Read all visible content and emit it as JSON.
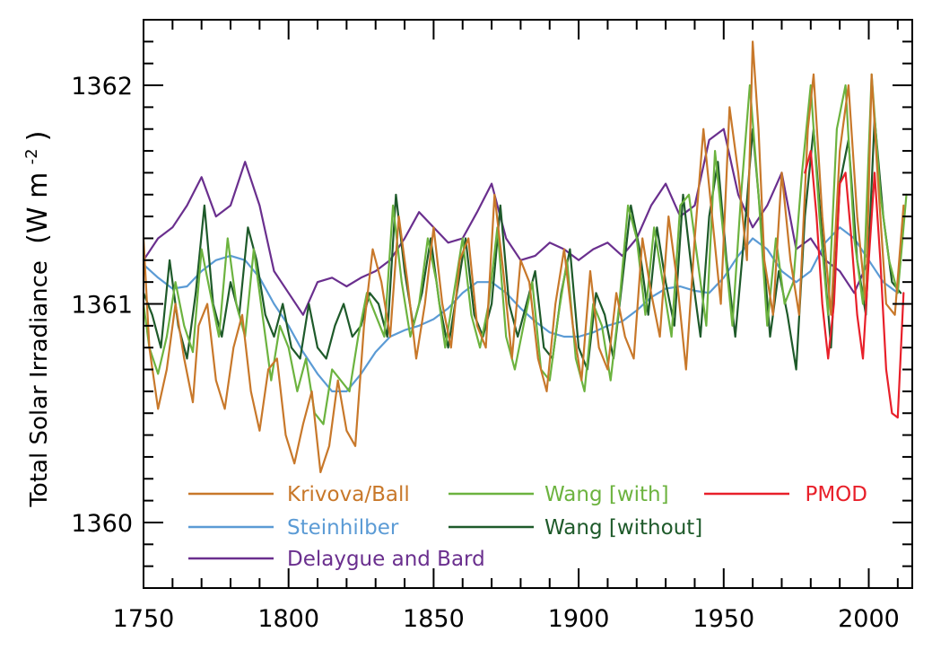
{
  "chart_data": {
    "type": "line",
    "title": "",
    "xlabel": "",
    "ylabel": "Total Solar Irradiance",
    "ylabel_units": "(W m",
    "ylabel_units_exp": "-2",
    "ylabel_units_close": ")",
    "xlim": [
      1750,
      2015
    ],
    "ylim": [
      1359.7,
      1362.3
    ],
    "xticks": [
      1750,
      1800,
      1850,
      1900,
      1950,
      2000
    ],
    "yticks": [
      1360,
      1361,
      1362
    ],
    "xtick_labels": [
      "1750",
      "1800",
      "1850",
      "1900",
      "1950",
      "2000"
    ],
    "ytick_labels": [
      "1360",
      "1361",
      "1362"
    ],
    "grid": false,
    "legend_position": "bottom-left",
    "series": [
      {
        "name": "Krivova/Ball",
        "color": "#c8782a",
        "x": [
          1750,
          1752,
          1755,
          1758,
          1761,
          1764,
          1767,
          1769,
          1772,
          1775,
          1778,
          1781,
          1784,
          1787,
          1790,
          1793,
          1796,
          1799,
          1802,
          1805,
          1808,
          1811,
          1814,
          1817,
          1820,
          1823,
          1826,
          1829,
          1832,
          1835,
          1838,
          1841,
          1844,
          1847,
          1850,
          1853,
          1856,
          1859,
          1862,
          1865,
          1868,
          1871,
          1874,
          1877,
          1880,
          1883,
          1886,
          1889,
          1892,
          1895,
          1898,
          1901,
          1904,
          1907,
          1910,
          1913,
          1916,
          1919,
          1922,
          1925,
          1928,
          1931,
          1934,
          1937,
          1940,
          1943,
          1946,
          1949,
          1952,
          1955,
          1958,
          1960,
          1962,
          1964,
          1967,
          1970,
          1973,
          1976,
          1979,
          1981,
          1984,
          1987,
          1990,
          1993,
          1996,
          1999,
          2001,
          2003,
          2006,
          2009,
          2012
        ],
        "y": [
          1361.3,
          1360.8,
          1360.52,
          1360.7,
          1361.0,
          1360.75,
          1360.55,
          1360.9,
          1361.0,
          1360.65,
          1360.52,
          1360.8,
          1360.95,
          1360.6,
          1360.42,
          1360.7,
          1360.75,
          1360.4,
          1360.27,
          1360.45,
          1360.6,
          1360.23,
          1360.35,
          1360.65,
          1360.42,
          1360.35,
          1360.9,
          1361.25,
          1361.1,
          1360.85,
          1361.4,
          1361.1,
          1360.75,
          1361.0,
          1361.35,
          1361.0,
          1360.8,
          1361.2,
          1361.3,
          1360.9,
          1360.8,
          1361.5,
          1361.15,
          1360.75,
          1361.2,
          1361.1,
          1360.75,
          1360.6,
          1361.0,
          1361.25,
          1360.9,
          1360.65,
          1361.15,
          1360.8,
          1360.7,
          1361.05,
          1360.85,
          1360.75,
          1361.3,
          1361.05,
          1360.85,
          1361.4,
          1361.1,
          1360.7,
          1361.3,
          1361.8,
          1361.4,
          1361.0,
          1361.9,
          1361.6,
          1361.2,
          1362.2,
          1361.8,
          1361.2,
          1360.95,
          1361.6,
          1361.2,
          1360.95,
          1361.8,
          1362.05,
          1361.4,
          1360.95,
          1361.7,
          1362.0,
          1361.4,
          1361.0,
          1362.05,
          1361.6,
          1361.0,
          1360.95,
          1361.45
        ]
      },
      {
        "name": "Wang [with]",
        "color": "#6cb33f",
        "x": [
          1750,
          1752,
          1755,
          1758,
          1761,
          1764,
          1767,
          1770,
          1773,
          1776,
          1779,
          1782,
          1785,
          1788,
          1791,
          1794,
          1797,
          1800,
          1803,
          1806,
          1809,
          1812,
          1815,
          1818,
          1821,
          1824,
          1827,
          1830,
          1833,
          1836,
          1839,
          1842,
          1845,
          1848,
          1851,
          1854,
          1857,
          1860,
          1863,
          1866,
          1869,
          1872,
          1875,
          1878,
          1881,
          1884,
          1887,
          1890,
          1893,
          1896,
          1899,
          1902,
          1905,
          1908,
          1911,
          1914,
          1917,
          1920,
          1923,
          1926,
          1929,
          1932,
          1935,
          1938,
          1941,
          1944,
          1947,
          1950,
          1953,
          1956,
          1959,
          1962,
          1965,
          1968,
          1971,
          1974,
          1977,
          1980,
          1983,
          1986,
          1989,
          1992,
          1995,
          1998,
          2001,
          2004,
          2007,
          2010,
          2013
        ],
        "y": [
          1361.0,
          1360.8,
          1360.68,
          1360.85,
          1361.1,
          1360.9,
          1360.78,
          1361.25,
          1361.05,
          1360.85,
          1361.3,
          1361.0,
          1360.85,
          1361.25,
          1360.95,
          1360.65,
          1360.9,
          1360.8,
          1360.6,
          1360.75,
          1360.5,
          1360.45,
          1360.7,
          1360.65,
          1360.6,
          1360.85,
          1361.05,
          1360.95,
          1360.85,
          1361.45,
          1361.1,
          1360.85,
          1361.0,
          1361.3,
          1361.1,
          1360.8,
          1361.05,
          1361.3,
          1360.95,
          1360.8,
          1361.0,
          1361.35,
          1360.85,
          1360.7,
          1360.9,
          1361.1,
          1360.7,
          1360.65,
          1360.95,
          1361.2,
          1360.75,
          1360.6,
          1361.0,
          1360.9,
          1360.65,
          1361.0,
          1361.45,
          1361.3,
          1360.95,
          1361.35,
          1361.1,
          1360.85,
          1361.45,
          1361.5,
          1361.2,
          1360.9,
          1361.7,
          1361.3,
          1360.9,
          1361.5,
          1362.0,
          1361.5,
          1360.9,
          1361.3,
          1361.0,
          1361.1,
          1361.6,
          1362.0,
          1361.4,
          1360.95,
          1361.8,
          1362.0,
          1361.3,
          1361.0,
          1362.05,
          1361.5,
          1361.2,
          1361.05,
          1361.5
        ]
      },
      {
        "name": "PMOD",
        "color": "#e8202a",
        "x": [
          1978,
          1980,
          1982,
          1984,
          1986,
          1988,
          1990,
          1992,
          1994,
          1996,
          1998,
          2000,
          2002,
          2004,
          2006,
          2008,
          2010,
          2012
        ],
        "y": [
          1361.6,
          1361.7,
          1361.4,
          1361.0,
          1360.75,
          1361.0,
          1361.55,
          1361.6,
          1361.3,
          1360.95,
          1360.75,
          1361.2,
          1361.6,
          1361.2,
          1360.7,
          1360.5,
          1360.48,
          1361.05
        ]
      },
      {
        "name": "Steinhilber",
        "color": "#5b9bd5",
        "x": [
          1750,
          1755,
          1760,
          1765,
          1770,
          1775,
          1780,
          1785,
          1790,
          1795,
          1800,
          1805,
          1810,
          1815,
          1820,
          1825,
          1830,
          1835,
          1840,
          1845,
          1850,
          1855,
          1860,
          1865,
          1870,
          1875,
          1880,
          1885,
          1890,
          1895,
          1900,
          1905,
          1910,
          1915,
          1920,
          1925,
          1930,
          1935,
          1940,
          1945,
          1950,
          1955,
          1960,
          1965,
          1970,
          1975,
          1980,
          1985,
          1990,
          1995,
          2000,
          2005,
          2010
        ],
        "y": [
          1361.18,
          1361.12,
          1361.07,
          1361.08,
          1361.15,
          1361.2,
          1361.22,
          1361.2,
          1361.12,
          1361.0,
          1360.9,
          1360.78,
          1360.68,
          1360.6,
          1360.6,
          1360.68,
          1360.78,
          1360.85,
          1360.88,
          1360.9,
          1360.93,
          1360.98,
          1361.05,
          1361.1,
          1361.1,
          1361.05,
          1360.98,
          1360.92,
          1360.87,
          1360.85,
          1360.85,
          1360.87,
          1360.9,
          1360.92,
          1360.97,
          1361.03,
          1361.07,
          1361.08,
          1361.06,
          1361.05,
          1361.12,
          1361.22,
          1361.3,
          1361.25,
          1361.15,
          1361.1,
          1361.15,
          1361.28,
          1361.35,
          1361.3,
          1361.2,
          1361.1,
          1361.05
        ]
      },
      {
        "name": "Wang [without]",
        "color": "#1e5a2a",
        "x": [
          1750,
          1753,
          1756,
          1759,
          1762,
          1765,
          1768,
          1771,
          1774,
          1777,
          1780,
          1783,
          1786,
          1789,
          1792,
          1795,
          1798,
          1801,
          1804,
          1807,
          1810,
          1813,
          1816,
          1819,
          1822,
          1825,
          1828,
          1831,
          1834,
          1837,
          1840,
          1843,
          1846,
          1849,
          1852,
          1855,
          1858,
          1861,
          1864,
          1867,
          1870,
          1873,
          1876,
          1879,
          1882,
          1885,
          1888,
          1891,
          1894,
          1897,
          1900,
          1903,
          1906,
          1909,
          1912,
          1915,
          1918,
          1921,
          1924,
          1927,
          1930,
          1933,
          1936,
          1939,
          1942,
          1945,
          1948,
          1951,
          1954,
          1957,
          1960,
          1963,
          1966,
          1969,
          1972,
          1975,
          1978,
          1981,
          1984,
          1987,
          1990,
          1993,
          1996,
          1999,
          2002,
          2005,
          2008,
          2011
        ],
        "y": [
          1361.05,
          1360.95,
          1360.8,
          1361.2,
          1360.9,
          1360.75,
          1361.05,
          1361.45,
          1361.0,
          1360.85,
          1361.1,
          1360.95,
          1361.35,
          1361.2,
          1360.95,
          1360.85,
          1361.0,
          1360.8,
          1360.75,
          1361.0,
          1360.8,
          1360.75,
          1360.9,
          1361.0,
          1360.85,
          1360.9,
          1361.05,
          1361.0,
          1360.85,
          1361.5,
          1361.15,
          1360.9,
          1361.05,
          1361.3,
          1361.0,
          1360.8,
          1361.05,
          1361.3,
          1360.95,
          1360.85,
          1361.0,
          1361.45,
          1361.0,
          1360.85,
          1361.0,
          1361.15,
          1360.8,
          1360.75,
          1361.05,
          1361.25,
          1360.8,
          1360.7,
          1361.05,
          1360.95,
          1360.75,
          1361.1,
          1361.45,
          1361.25,
          1360.95,
          1361.35,
          1361.1,
          1360.9,
          1361.5,
          1361.15,
          1360.85,
          1361.4,
          1361.65,
          1361.2,
          1360.85,
          1361.3,
          1361.8,
          1361.35,
          1360.85,
          1361.15,
          1360.95,
          1360.7,
          1361.4,
          1361.8,
          1361.3,
          1360.8,
          1361.55,
          1361.75,
          1361.2,
          1360.95,
          1361.85,
          1361.4,
          1361.1,
          1361.05
        ]
      },
      {
        "name": "Delaygue and Bard",
        "color": "#6a2f8e",
        "x": [
          1750,
          1755,
          1760,
          1765,
          1770,
          1775,
          1780,
          1785,
          1790,
          1795,
          1800,
          1805,
          1810,
          1815,
          1820,
          1825,
          1830,
          1835,
          1840,
          1845,
          1850,
          1855,
          1860,
          1865,
          1870,
          1875,
          1880,
          1885,
          1890,
          1895,
          1900,
          1905,
          1910,
          1915,
          1920,
          1925,
          1930,
          1935,
          1940,
          1945,
          1950,
          1955,
          1960,
          1965,
          1970,
          1975,
          1980,
          1985,
          1990,
          1995,
          2000
        ],
        "y": [
          1361.2,
          1361.3,
          1361.35,
          1361.45,
          1361.58,
          1361.4,
          1361.45,
          1361.65,
          1361.45,
          1361.15,
          1361.05,
          1360.95,
          1361.1,
          1361.12,
          1361.08,
          1361.12,
          1361.15,
          1361.2,
          1361.3,
          1361.42,
          1361.35,
          1361.28,
          1361.3,
          1361.42,
          1361.55,
          1361.3,
          1361.2,
          1361.22,
          1361.28,
          1361.25,
          1361.2,
          1361.25,
          1361.28,
          1361.22,
          1361.3,
          1361.45,
          1361.55,
          1361.4,
          1361.45,
          1361.75,
          1361.8,
          1361.5,
          1361.35,
          1361.45,
          1361.6,
          1361.25,
          1361.3,
          1361.2,
          1361.15,
          1361.05,
          1361.2
        ]
      }
    ],
    "legend": [
      {
        "label": "Krivova/Ball",
        "color": "#c8782a"
      },
      {
        "label": "Wang [with]",
        "color": "#6cb33f"
      },
      {
        "label": "PMOD",
        "color": "#e8202a"
      },
      {
        "label": "Steinhilber",
        "color": "#5b9bd5"
      },
      {
        "label": "Wang [without]",
        "color": "#1e5a2a"
      },
      {
        "label": "Delaygue and Bard",
        "color": "#6a2f8e"
      }
    ]
  }
}
